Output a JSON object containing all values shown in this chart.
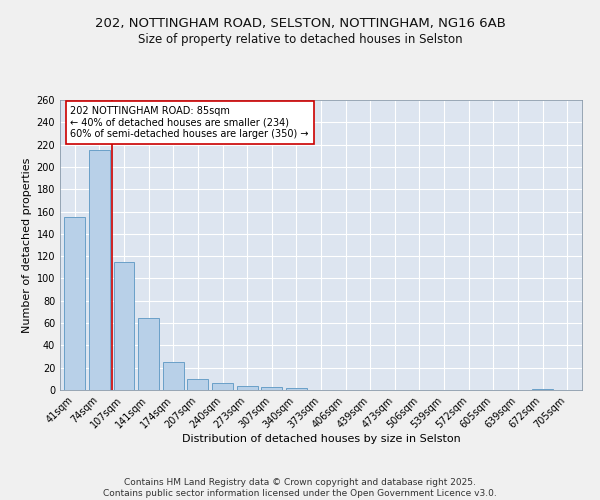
{
  "title1": "202, NOTTINGHAM ROAD, SELSTON, NOTTINGHAM, NG16 6AB",
  "title2": "Size of property relative to detached houses in Selston",
  "xlabel": "Distribution of detached houses by size in Selston",
  "ylabel": "Number of detached properties",
  "categories": [
    "41sqm",
    "74sqm",
    "107sqm",
    "141sqm",
    "174sqm",
    "207sqm",
    "240sqm",
    "273sqm",
    "307sqm",
    "340sqm",
    "373sqm",
    "406sqm",
    "439sqm",
    "473sqm",
    "506sqm",
    "539sqm",
    "572sqm",
    "605sqm",
    "639sqm",
    "672sqm",
    "705sqm"
  ],
  "values": [
    155,
    215,
    115,
    65,
    25,
    10,
    6,
    4,
    3,
    2,
    0,
    0,
    0,
    0,
    0,
    0,
    0,
    0,
    0,
    1,
    0
  ],
  "bar_color": "#b8d0e8",
  "bar_edge_color": "#6aa0c8",
  "red_line_index": 1.5,
  "red_line_color": "#cc0000",
  "annotation_text": "202 NOTTINGHAM ROAD: 85sqm\n← 40% of detached houses are smaller (234)\n60% of semi-detached houses are larger (350) →",
  "annotation_box_color": "#ffffff",
  "annotation_box_edge": "#cc0000",
  "ylim": [
    0,
    260
  ],
  "yticks": [
    0,
    20,
    40,
    60,
    80,
    100,
    120,
    140,
    160,
    180,
    200,
    220,
    240,
    260
  ],
  "background_color": "#dde5f0",
  "grid_color": "#ffffff",
  "footnote": "Contains HM Land Registry data © Crown copyright and database right 2025.\nContains public sector information licensed under the Open Government Licence v3.0.",
  "title_fontsize": 9.5,
  "subtitle_fontsize": 8.5,
  "label_fontsize": 8,
  "tick_fontsize": 7,
  "footnote_fontsize": 6.5
}
